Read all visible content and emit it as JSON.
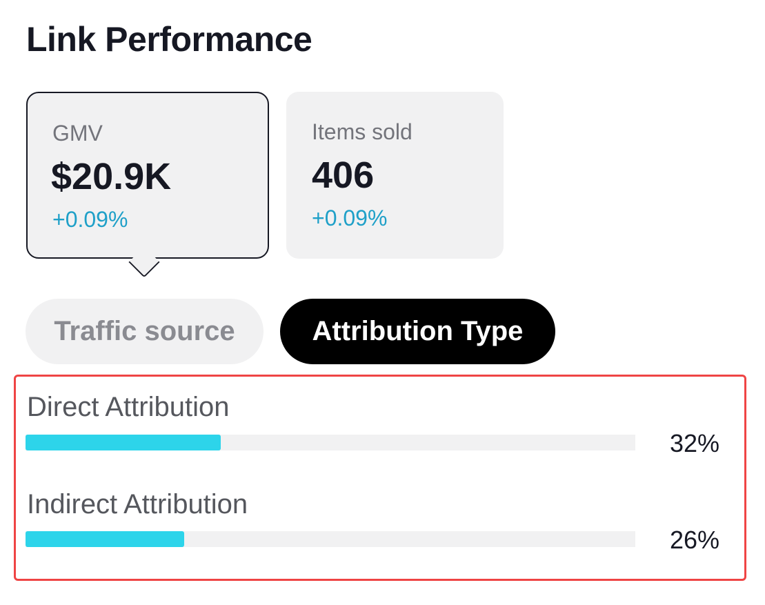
{
  "title": "Link Performance",
  "metrics": [
    {
      "label": "GMV",
      "value": "$20.9K",
      "change": "+0.09%",
      "selected": true
    },
    {
      "label": "Items sold",
      "value": "406",
      "change": "+0.09%",
      "selected": false
    }
  ],
  "tabs": [
    {
      "label": "Traffic source",
      "active": false
    },
    {
      "label": "Attribution Type",
      "active": true
    }
  ],
  "attribution": [
    {
      "label": "Direct Attribution",
      "percent_label": "32%",
      "percent": 32
    },
    {
      "label": "Indirect Attribution",
      "percent_label": "26%",
      "percent": 26
    }
  ],
  "colors": {
    "bar_fill": "#2dd4ea",
    "change_text": "#1fa0c8",
    "highlight_border": "#ef4444"
  }
}
